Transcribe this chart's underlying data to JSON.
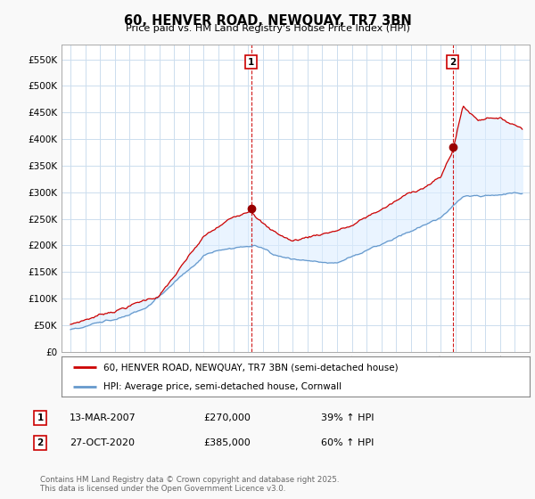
{
  "title": "60, HENVER ROAD, NEWQUAY, TR7 3BN",
  "subtitle": "Price paid vs. HM Land Registry's House Price Index (HPI)",
  "ylim": [
    0,
    577000
  ],
  "yticks": [
    0,
    50000,
    100000,
    150000,
    200000,
    250000,
    300000,
    350000,
    400000,
    450000,
    500000,
    550000
  ],
  "ytick_labels": [
    "£0",
    "£50K",
    "£100K",
    "£150K",
    "£200K",
    "£250K",
    "£300K",
    "£350K",
    "£400K",
    "£450K",
    "£500K",
    "£550K"
  ],
  "sale1_year": 2007.2,
  "sale1_price": 270000,
  "sale1_date": "13-MAR-2007",
  "sale1_pct": "39% ↑ HPI",
  "sale2_year": 2020.8,
  "sale2_price": 385000,
  "sale2_date": "27-OCT-2020",
  "sale2_pct": "60% ↑ HPI",
  "legend_label1": "60, HENVER ROAD, NEWQUAY, TR7 3BN (semi-detached house)",
  "legend_label2": "HPI: Average price, semi-detached house, Cornwall",
  "line1_color": "#cc0000",
  "line2_color": "#6699cc",
  "fill_color": "#ddeeff",
  "vline_color": "#cc0000",
  "marker_color": "#990000",
  "footer": "Contains HM Land Registry data © Crown copyright and database right 2025.\nThis data is licensed under the Open Government Licence v3.0.",
  "background_color": "#f9f9f9",
  "plot_bg_color": "#ffffff",
  "grid_color": "#ccddee"
}
